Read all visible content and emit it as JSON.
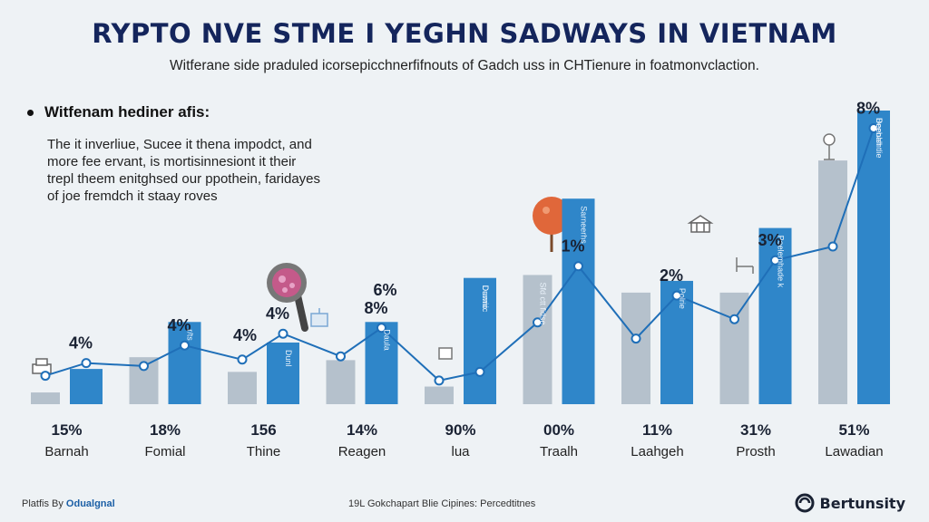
{
  "header": {
    "title": "RYPTO NVE STME I YEGHN SADWAYS IN VIETNAM",
    "subtitle": "Witferane side praduled icorsepicchnerfifnouts of Gadch uss in CHTienure in foatmonvclaction."
  },
  "note": {
    "heading": "Witfenam hediner afis:",
    "lines": [
      "The it inverliue, Sucee it thena impodct, and",
      "more fee ervant, is mortisinnesiont it their",
      "trepl theem enitghsed our ppothein, faridayes",
      "of joe fremdch it staay roves"
    ]
  },
  "colors": {
    "blue_bar": "#2f86c9",
    "gray_bar": "#b5c1cc",
    "line": "#1f6fb8",
    "title": "#14255c"
  },
  "icons": [
    "printer-icon",
    "magnifier-icon",
    "gift-icon",
    "handshake-icon",
    "tree-icon",
    "bank-icon",
    "chair-icon",
    "lamp-icon"
  ],
  "chart_data": {
    "type": "bar",
    "ylim": [
      0,
      100
    ],
    "grid": false,
    "legend": "none",
    "groups": [
      {
        "category": "Barnah",
        "bottom_label": "15%",
        "bar_label": "",
        "top_label": "4%",
        "gray": 4,
        "blue": 12,
        "line": 14
      },
      {
        "category": "Fomial",
        "bottom_label": "18%",
        "bar_label": "",
        "top_label": "4%",
        "gray": 16,
        "blue": 28,
        "line": 20
      },
      {
        "category": "Thine",
        "bottom_label": "156",
        "bar_label": "",
        "top_label": "4%",
        "gray": 11,
        "blue": 21,
        "line": 24
      },
      {
        "category": "Reagen",
        "bottom_label": "14%",
        "bar_label": "",
        "top_label": "8%",
        "gray": 15,
        "blue": 28,
        "line": 26
      },
      {
        "category": "lua",
        "bottom_label": "90%",
        "bar_label": "Durnic",
        "top_label": "",
        "gray": 6,
        "blue": 43,
        "line": 11
      },
      {
        "category": "Traalh",
        "bottom_label": "00%",
        "bar_label": "",
        "top_label": "1%",
        "gray": 44,
        "blue": 70,
        "line": 47
      },
      {
        "category": "Laahgeh",
        "bottom_label": "11%",
        "bar_label": "Polrie",
        "top_label": "2%",
        "gray": 38,
        "blue": 42,
        "line": 37
      },
      {
        "category": "Prosth",
        "bottom_label": "31%",
        "bar_label": "Poelemhade k",
        "top_label": "3%",
        "gray": 38,
        "blue": 60,
        "line": 49
      },
      {
        "category": "Lawadian",
        "bottom_label": "51%",
        "bar_label": "Deenlshtlie",
        "top_label": "8%",
        "gray": 83,
        "blue": 100,
        "line": 94
      }
    ],
    "extra_bar_labels": [
      {
        "group": 1,
        "text": "r/ts"
      },
      {
        "group": 2,
        "text": "Dunl"
      },
      {
        "group": 3,
        "text": "Daula"
      },
      {
        "group": 4,
        "text": "Dawnic"
      },
      {
        "group": 5,
        "text": "Sarneerhs"
      },
      {
        "group": 5,
        "text": "Sfd ctt fidse"
      },
      {
        "group": 8,
        "text": "Beebah"
      }
    ],
    "floating_labels": [
      "4%",
      "6%"
    ]
  },
  "footer": {
    "left_prefix": "Platfis By",
    "left_brand": "Odualgnal",
    "center": "19L Gokchapart Blie Cipines: Percedtitnes",
    "right": "Bertunsity"
  }
}
